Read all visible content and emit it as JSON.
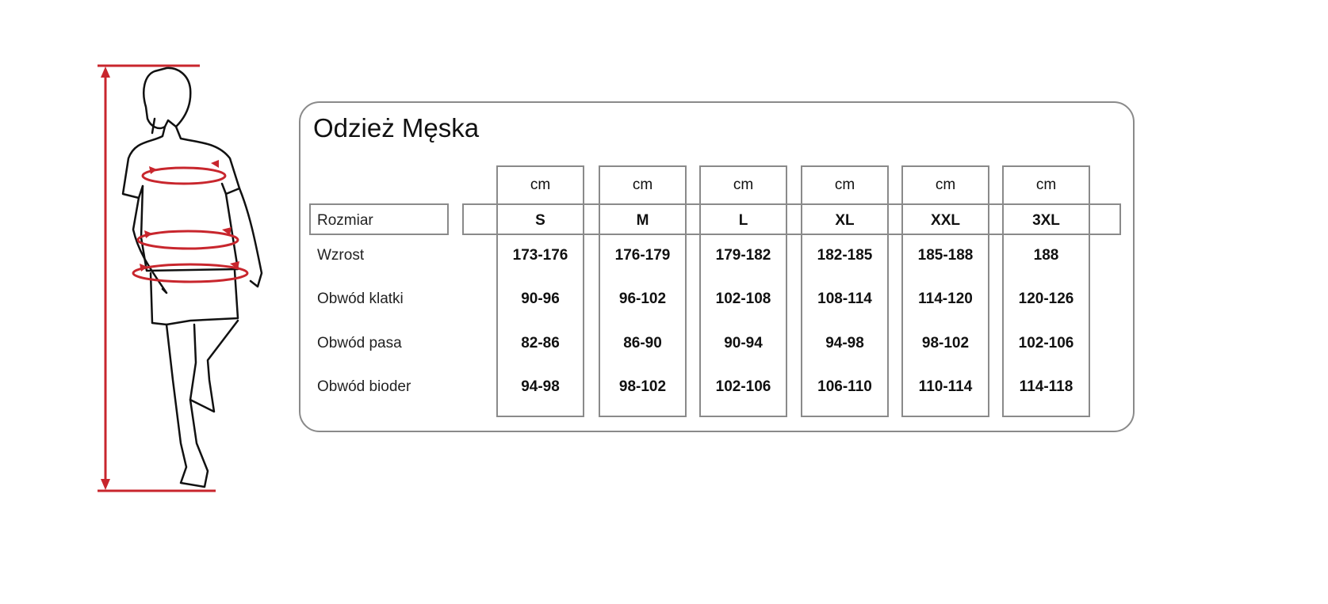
{
  "title": "Odzież Męska",
  "colors": {
    "measure_lines": "#c8262d",
    "borders": "#8a8a8a"
  },
  "figure": {
    "icon": "man-measurement-illustration"
  },
  "table": {
    "size_label": "Rozmiar",
    "unit": "cm",
    "sizes": [
      "S",
      "M",
      "L",
      "XL",
      "XXL",
      "3XL"
    ],
    "rows": [
      {
        "label": "Wzrost",
        "values": [
          "173-176",
          "176-179",
          "179-182",
          "182-185",
          "185-188",
          "188"
        ]
      },
      {
        "label": "Obwód klatki",
        "values": [
          "90-96",
          "96-102",
          "102-108",
          "108-114",
          "114-120",
          "120-126"
        ]
      },
      {
        "label": "Obwód pasa",
        "values": [
          "82-86",
          "86-90",
          "90-94",
          "94-98",
          "98-102",
          "102-106"
        ]
      },
      {
        "label": "Obwód bioder",
        "values": [
          "94-98",
          "98-102",
          "102-106",
          "106-110",
          "110-114",
          "114-118"
        ]
      }
    ]
  }
}
